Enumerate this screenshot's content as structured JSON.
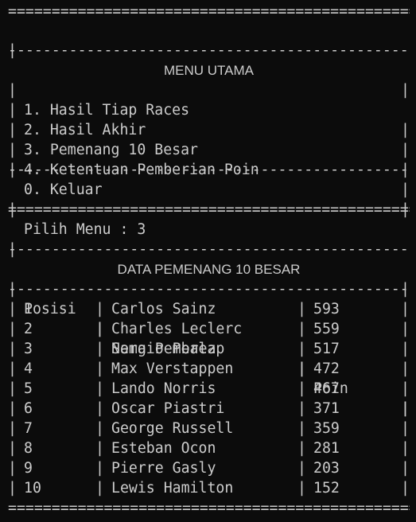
{
  "menu": {
    "title": "MENU UTAMA",
    "items": [
      {
        "label": "1. Hasil Tiap Races"
      },
      {
        "label": "2. Hasil Akhir"
      },
      {
        "label": "3. Pemenang 10 Besar"
      },
      {
        "label": "4. Ketentuan Pemberian Poin"
      },
      {
        "label": "0. Keluar"
      }
    ],
    "prompt": "Pilih Menu : 3"
  },
  "table": {
    "title": "DATA PEMENANG 10 BESAR",
    "headers": {
      "posisi": "Posisi",
      "nama": "Nama Pembalap",
      "poin": "Poin"
    },
    "rows": [
      {
        "posisi": "1",
        "nama": "Carlos Sainz",
        "poin": "593"
      },
      {
        "posisi": "2",
        "nama": "Charles Leclerc",
        "poin": "559"
      },
      {
        "posisi": "3",
        "nama": "Sergio Perez",
        "poin": "517"
      },
      {
        "posisi": "4",
        "nama": "Max Verstappen",
        "poin": "472"
      },
      {
        "posisi": "5",
        "nama": "Lando Norris",
        "poin": "467"
      },
      {
        "posisi": "6",
        "nama": "Oscar Piastri",
        "poin": "371"
      },
      {
        "posisi": "7",
        "nama": "George Russell",
        "poin": "359"
      },
      {
        "posisi": "8",
        "nama": "Esteban Ocon",
        "poin": "281"
      },
      {
        "posisi": "9",
        "nama": "Pierre Gasly",
        "poin": "203"
      },
      {
        "posisi": "10",
        "nama": "Lewis Hamilton",
        "poin": "152"
      }
    ]
  },
  "glyphs": {
    "double_rule": "==================================================",
    "single_rule": "--------------------------------------------------",
    "bar": "|"
  },
  "colors": {
    "background": "#0c0c0c",
    "text": "#cccccc"
  }
}
